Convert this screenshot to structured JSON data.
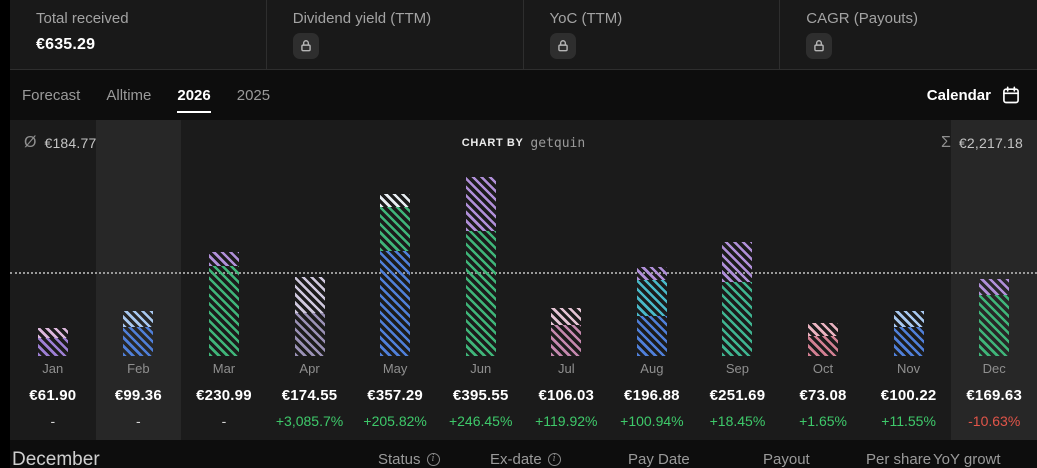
{
  "stats": {
    "cards": [
      {
        "title": "Total received",
        "value": "€635.29",
        "locked": false
      },
      {
        "title": "Dividend yield (TTM)",
        "locked": true
      },
      {
        "title": "YoC (TTM)",
        "locked": true
      },
      {
        "title": "CAGR (Payouts)",
        "locked": true
      }
    ]
  },
  "tabs": [
    {
      "label": "Forecast",
      "active": false
    },
    {
      "label": "Alltime",
      "active": false
    },
    {
      "label": "2026",
      "active": true
    },
    {
      "label": "2025",
      "active": false
    }
  ],
  "calendar_button": {
    "label": "Calendar",
    "icon": "calendar-icon"
  },
  "chart_header": {
    "avg_symbol": "Ø",
    "avg_value": "€184.77",
    "chart_by_label": "CHART BY",
    "brand": "getquin",
    "sum_symbol": "Σ",
    "sum_value": "€2,217.18"
  },
  "colors": {
    "positive": "#3ec96a",
    "negative": "#e25549",
    "neutral": "#d6d6d6",
    "panel": "#1b1b1b",
    "highlight": "#272727"
  },
  "chart_data": {
    "type": "bar",
    "categories": [
      "Jan",
      "Feb",
      "Mar",
      "Apr",
      "May",
      "Jun",
      "Jul",
      "Aug",
      "Sep",
      "Oct",
      "Nov",
      "Dec"
    ],
    "values": [
      61.9,
      99.36,
      230.99,
      174.55,
      357.29,
      395.55,
      106.03,
      196.88,
      251.69,
      73.08,
      100.22,
      169.63
    ],
    "value_labels": [
      "€61.90",
      "€99.36",
      "€230.99",
      "€174.55",
      "€357.29",
      "€395.55",
      "€106.03",
      "€196.88",
      "€251.69",
      "€73.08",
      "€100.22",
      "€169.63"
    ],
    "growth_labels": [
      "-",
      "-",
      "-",
      "+3,085.7%",
      "+205.82%",
      "+246.45%",
      "+119.92%",
      "+100.94%",
      "+18.45%",
      "+1.65%",
      "+11.55%",
      "-10.63%"
    ],
    "growth_types": [
      "none",
      "none",
      "none",
      "pos",
      "pos",
      "pos",
      "pos",
      "pos",
      "pos",
      "pos",
      "pos",
      "neg"
    ],
    "average": 184.77,
    "sum": 2217.18,
    "currency": "€",
    "ylim": [
      0,
      420
    ],
    "grid": false,
    "legend": false,
    "highlight_columns": [
      1,
      11
    ],
    "bar_segments": [
      [
        {
          "color": "#dcb8dc",
          "frac": 0.35
        },
        {
          "color": "#9d7fd4",
          "frac": 0.65
        }
      ],
      [
        {
          "color": "#a8c8f0",
          "frac": 0.35
        },
        {
          "color": "#4f7fd9",
          "frac": 0.65
        }
      ],
      [
        {
          "color": "#b08fd8",
          "frac": 0.14
        },
        {
          "color": "#3fb579",
          "frac": 0.86
        }
      ],
      [
        {
          "color": "#cfc8dd",
          "frac": 0.45
        },
        {
          "color": "#9a91b5",
          "frac": 0.55
        }
      ],
      [
        {
          "color": "#e8eef2",
          "frac": 0.08
        },
        {
          "color": "#3fb579",
          "frac": 0.27
        },
        {
          "color": "#4f7fd9",
          "frac": 0.65
        }
      ],
      [
        {
          "color": "#b08fd8",
          "frac": 0.3
        },
        {
          "color": "#3fb579",
          "frac": 0.7
        }
      ],
      [
        {
          "color": "#e3c3d3",
          "frac": 0.35
        },
        {
          "color": "#c488ae",
          "frac": 0.65
        }
      ],
      [
        {
          "color": "#b08fd8",
          "frac": 0.15
        },
        {
          "color": "#49b8c8",
          "frac": 0.4
        },
        {
          "color": "#4f7fd9",
          "frac": 0.45
        }
      ],
      [
        {
          "color": "#b08fd8",
          "frac": 0.35
        },
        {
          "color": "#3fb591",
          "frac": 0.65
        }
      ],
      [
        {
          "color": "#eab3c0",
          "frac": 0.4
        },
        {
          "color": "#d27f92",
          "frac": 0.6
        }
      ],
      [
        {
          "color": "#a8c8f0",
          "frac": 0.35
        },
        {
          "color": "#4f7fd9",
          "frac": 0.65
        }
      ],
      [
        {
          "color": "#b08fd8",
          "frac": 0.2
        },
        {
          "color": "#3fb579",
          "frac": 0.8
        }
      ]
    ]
  },
  "table": {
    "section_title": "December",
    "headers": [
      {
        "label": "Status",
        "info": true
      },
      {
        "label": "Ex-date",
        "info": true
      },
      {
        "label": "Pay Date",
        "info": false
      },
      {
        "label": "Payout",
        "info": false
      },
      {
        "label": "Per share",
        "info": false
      },
      {
        "label": "YoY growt",
        "info": false
      }
    ]
  }
}
